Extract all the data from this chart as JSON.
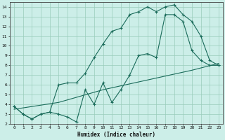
{
  "xlabel": "Humidex (Indice chaleur)",
  "bg_color": "#cceee8",
  "grid_color": "#99ccbb",
  "line_color": "#1a6b5a",
  "xlim": [
    -0.5,
    23.5
  ],
  "ylim": [
    2,
    14.5
  ],
  "xticks": [
    0,
    1,
    2,
    3,
    4,
    5,
    6,
    7,
    8,
    9,
    10,
    11,
    12,
    13,
    14,
    15,
    16,
    17,
    18,
    19,
    20,
    21,
    22,
    23
  ],
  "yticks": [
    2,
    3,
    4,
    5,
    6,
    7,
    8,
    9,
    10,
    11,
    12,
    13,
    14
  ],
  "line1_x": [
    0,
    1,
    2,
    3,
    4,
    5,
    6,
    7,
    8,
    9,
    10,
    11,
    12,
    13,
    14,
    15,
    16,
    17,
    18,
    19,
    20,
    21,
    22,
    23
  ],
  "line1_y": [
    3.8,
    3.0,
    2.5,
    3.0,
    3.2,
    3.0,
    2.7,
    2.2,
    5.5,
    4.0,
    6.2,
    4.2,
    5.5,
    7.0,
    9.0,
    9.2,
    8.8,
    13.2,
    13.2,
    12.5,
    9.5,
    8.5,
    8.0,
    8.0
  ],
  "line2_x": [
    0,
    1,
    2,
    3,
    4,
    5,
    6,
    7,
    8,
    9,
    10,
    11,
    12,
    13,
    14,
    15,
    16,
    17,
    18,
    19,
    20,
    21,
    22,
    23
  ],
  "line2_y": [
    3.8,
    3.0,
    2.5,
    3.0,
    3.2,
    6.0,
    6.2,
    6.2,
    7.2,
    8.8,
    10.2,
    11.5,
    11.8,
    13.2,
    13.5,
    14.0,
    13.5,
    14.0,
    14.2,
    13.2,
    12.5,
    11.0,
    8.5,
    8.0
  ],
  "line3_x": [
    0,
    5,
    10,
    15,
    20,
    23
  ],
  "line3_y": [
    3.5,
    4.2,
    5.5,
    6.5,
    7.5,
    8.2
  ]
}
